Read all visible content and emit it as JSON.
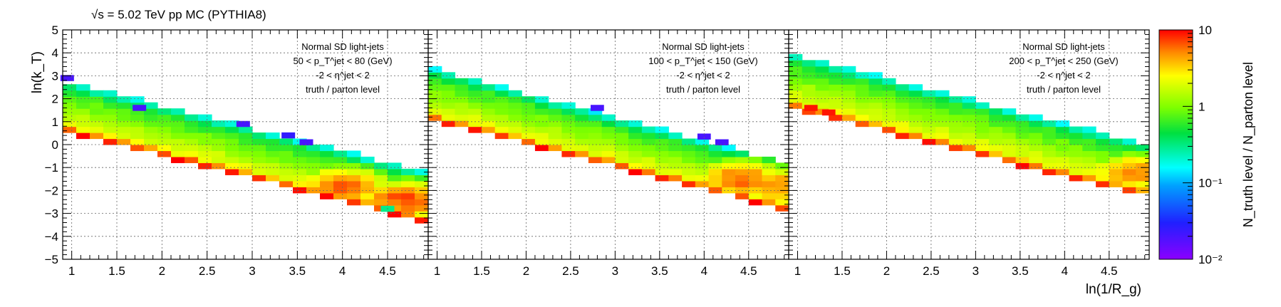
{
  "header": {
    "energy_label": "√s = 5.02 TeV pp MC (PYTHIA8)"
  },
  "chart_data": {
    "type": "heatmap",
    "ylabel": "ln(k_T)",
    "xlabel": "ln(1/R_g)",
    "xlim": [
      0.9,
      4.95
    ],
    "ylim": [
      -5,
      5
    ],
    "x_ticks": [
      "1",
      "1.5",
      "2",
      "2.5",
      "3",
      "3.5",
      "4",
      "4.5"
    ],
    "x_tick_values": [
      1,
      1.5,
      2,
      2.5,
      3,
      3.5,
      4,
      4.5
    ],
    "y_ticks": [
      "5",
      "4",
      "3",
      "2",
      "1",
      "0",
      "−1",
      "−2",
      "−3",
      "−4",
      "−5"
    ],
    "y_tick_values": [
      5,
      4,
      3,
      2,
      1,
      0,
      -1,
      -2,
      -3,
      -4,
      -5
    ],
    "grid": true,
    "colorbar": {
      "label": "N_truth level / N_parton level",
      "scale": "log",
      "range": [
        0.01,
        10
      ],
      "ticks": [
        "10",
        "1",
        "10⁻¹",
        "10⁻²"
      ],
      "tick_values": [
        10,
        1,
        0.1,
        0.01
      ]
    },
    "panels": [
      {
        "lines": [
          "Normal SD light-jets",
          "50 < p_T^jet < 80 (GeV)",
          "-2 < η^jet < 2",
          "truth / parton level"
        ],
        "band": {
          "x_start": 0.9,
          "x_end": 4.95,
          "top_start": 2.8,
          "top_end": -1.2,
          "bottom_start": 0.6,
          "bottom_end": -3.4
        },
        "hot_spots": [
          {
            "x": 4.0,
            "y": -1.8,
            "value": 6
          },
          {
            "x": 4.7,
            "y": -2.4,
            "value": 7
          }
        ],
        "outliers": [
          {
            "x": 0.95,
            "y": 2.9,
            "value": 0.02
          },
          {
            "x": 1.75,
            "y": 1.6,
            "value": 0.02
          },
          {
            "x": 2.9,
            "y": 0.9,
            "value": 0.02
          },
          {
            "x": 3.4,
            "y": 0.4,
            "value": 0.025
          },
          {
            "x": 3.6,
            "y": 0.1,
            "value": 0.02
          },
          {
            "x": 4.5,
            "y": -2.8,
            "value": 0.3
          }
        ]
      },
      {
        "lines": [
          "Normal SD light-jets",
          "100 < p_T^jet < 150 (GeV)",
          "-2 < η^jet < 2",
          "truth / parton level"
        ],
        "band": {
          "x_start": 0.9,
          "x_end": 4.95,
          "top_start": 3.4,
          "top_end": -0.8,
          "bottom_start": 1.1,
          "bottom_end": -2.9
        },
        "hot_spots": [
          {
            "x": 4.4,
            "y": -1.5,
            "value": 6
          },
          {
            "x": 4.8,
            "y": -1.8,
            "value": 5
          }
        ],
        "outliers": [
          {
            "x": 2.8,
            "y": 1.6,
            "value": 0.02
          },
          {
            "x": 4.0,
            "y": 0.35,
            "value": 0.02
          },
          {
            "x": 4.2,
            "y": 0.1,
            "value": 0.02
          }
        ]
      },
      {
        "lines": [
          "Normal SD light-jets",
          "200 < p_T^jet < 250 (GeV)",
          "-2 < η^jet < 2",
          "truth / parton level"
        ],
        "band": {
          "x_start": 0.9,
          "x_end": 4.95,
          "top_start": 4.0,
          "top_end": 0.0,
          "bottom_start": 1.6,
          "bottom_end": -2.3
        },
        "hot_spots": [
          {
            "x": 4.8,
            "y": -1.2,
            "value": 5
          }
        ],
        "outliers": [
          {
            "x": 1.15,
            "y": 1.6,
            "value": 9
          },
          {
            "x": 1.35,
            "y": 1.4,
            "value": 9
          }
        ]
      }
    ]
  }
}
